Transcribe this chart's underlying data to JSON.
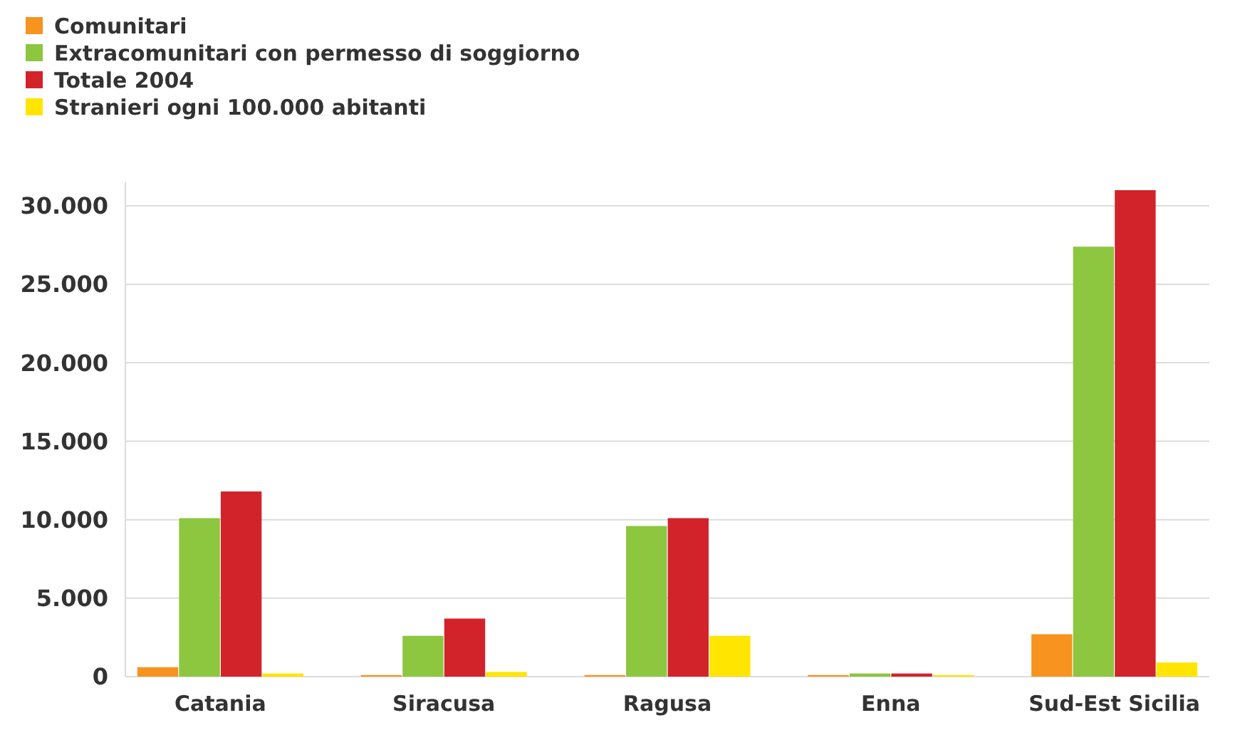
{
  "chart_data": {
    "type": "bar",
    "categories": [
      "Catania",
      "Siracusa",
      "Ragusa",
      "Enna",
      "Sud-Est Sicilia"
    ],
    "series": [
      {
        "name": "Comunitari",
        "color": "#f7931e",
        "values": [
          600,
          100,
          100,
          100,
          2700
        ]
      },
      {
        "name": "Extracomunitari con permesso di soggiorno",
        "color": "#8dc63f",
        "values": [
          10100,
          2600,
          9600,
          200,
          27400
        ]
      },
      {
        "name": "Totale 2004",
        "color": "#d2232a",
        "values": [
          11800,
          3700,
          10100,
          200,
          31000
        ]
      },
      {
        "name": "Stranieri ogni 100.000 abitanti",
        "color": "#ffe500",
        "values": [
          200,
          300,
          2600,
          100,
          900
        ]
      }
    ],
    "ylim": [
      0,
      31500
    ],
    "yticks": [
      {
        "value": 0,
        "label": "0"
      },
      {
        "value": 5000,
        "label": "5.000"
      },
      {
        "value": 10000,
        "label": "10.000"
      },
      {
        "value": 15000,
        "label": "15.000"
      },
      {
        "value": 20000,
        "label": "20.000"
      },
      {
        "value": 25000,
        "label": "25.000"
      },
      {
        "value": 30000,
        "label": "30.000"
      }
    ],
    "grid": "y",
    "legend": "top left"
  }
}
